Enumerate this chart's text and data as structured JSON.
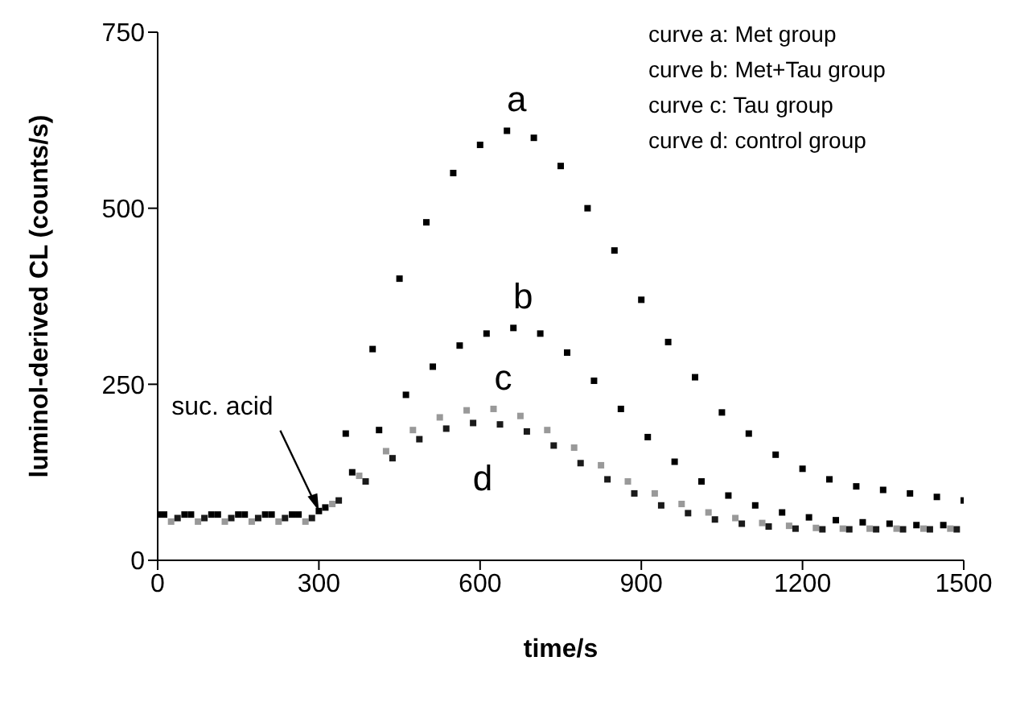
{
  "chart_data": {
    "type": "scatter",
    "xlabel": "time/s",
    "ylabel": "luminol-derived CL (counts/s)",
    "series": [
      {
        "name": "a",
        "color": "#000000",
        "x": [
          0,
          50,
          100,
          150,
          200,
          250,
          300,
          350,
          400,
          450,
          500,
          550,
          600,
          650,
          700,
          750,
          800,
          850,
          900,
          950,
          1000,
          1050,
          1100,
          1150,
          1200,
          1250,
          1300,
          1350,
          1400,
          1450,
          1500
        ],
        "values": [
          65,
          65,
          65,
          65,
          65,
          65,
          70,
          180,
          300,
          400,
          480,
          550,
          590,
          610,
          600,
          560,
          500,
          440,
          370,
          310,
          260,
          210,
          180,
          150,
          130,
          115,
          105,
          100,
          95,
          90,
          85
        ]
      },
      {
        "name": "b",
        "color": "#000000",
        "x": [
          12,
          62,
          112,
          162,
          212,
          262,
          312,
          362,
          412,
          462,
          512,
          562,
          612,
          662,
          712,
          762,
          812,
          862,
          912,
          962,
          1012,
          1062,
          1112,
          1162,
          1212,
          1262,
          1312,
          1362,
          1412,
          1462
        ],
        "values": [
          65,
          65,
          65,
          65,
          65,
          65,
          75,
          125,
          185,
          235,
          275,
          305,
          322,
          330,
          322,
          295,
          255,
          215,
          175,
          140,
          112,
          92,
          78,
          68,
          61,
          57,
          54,
          52,
          50,
          50
        ]
      },
      {
        "name": "c",
        "color": "#999999",
        "x": [
          25,
          75,
          125,
          175,
          225,
          275,
          325,
          375,
          425,
          475,
          525,
          575,
          625,
          675,
          725,
          775,
          825,
          875,
          925,
          975,
          1025,
          1075,
          1125,
          1175,
          1225,
          1275,
          1325,
          1375,
          1425,
          1475
        ],
        "values": [
          55,
          55,
          55,
          55,
          55,
          55,
          80,
          120,
          155,
          185,
          203,
          213,
          215,
          205,
          185,
          160,
          135,
          112,
          95,
          80,
          68,
          60,
          53,
          49,
          46,
          45,
          45,
          45,
          45,
          45
        ]
      },
      {
        "name": "d",
        "color": "#1a1a1a",
        "x": [
          37,
          87,
          137,
          187,
          237,
          287,
          337,
          387,
          437,
          487,
          537,
          587,
          637,
          687,
          737,
          787,
          837,
          887,
          937,
          987,
          1037,
          1087,
          1137,
          1187,
          1237,
          1287,
          1337,
          1387,
          1437,
          1487
        ],
        "values": [
          60,
          60,
          60,
          60,
          60,
          60,
          85,
          112,
          145,
          172,
          187,
          195,
          193,
          183,
          163,
          138,
          115,
          95,
          78,
          67,
          58,
          52,
          48,
          45,
          44,
          44,
          44,
          44,
          44,
          44
        ]
      }
    ],
    "xlim": [
      0,
      1500
    ],
    "xticks": [
      0,
      300,
      600,
      900,
      1200,
      1500
    ],
    "ylim": [
      0,
      750
    ],
    "yticks": [
      0,
      250,
      500,
      750
    ],
    "marker": "square",
    "grid": false,
    "legend": false,
    "annotations": [
      "curve a: Met group",
      "curve b: Met+Tau group",
      "curve c: Tau group",
      "curve d: control group",
      {
        "text": "suc. acid",
        "x": 300,
        "y": 70
      }
    ]
  }
}
